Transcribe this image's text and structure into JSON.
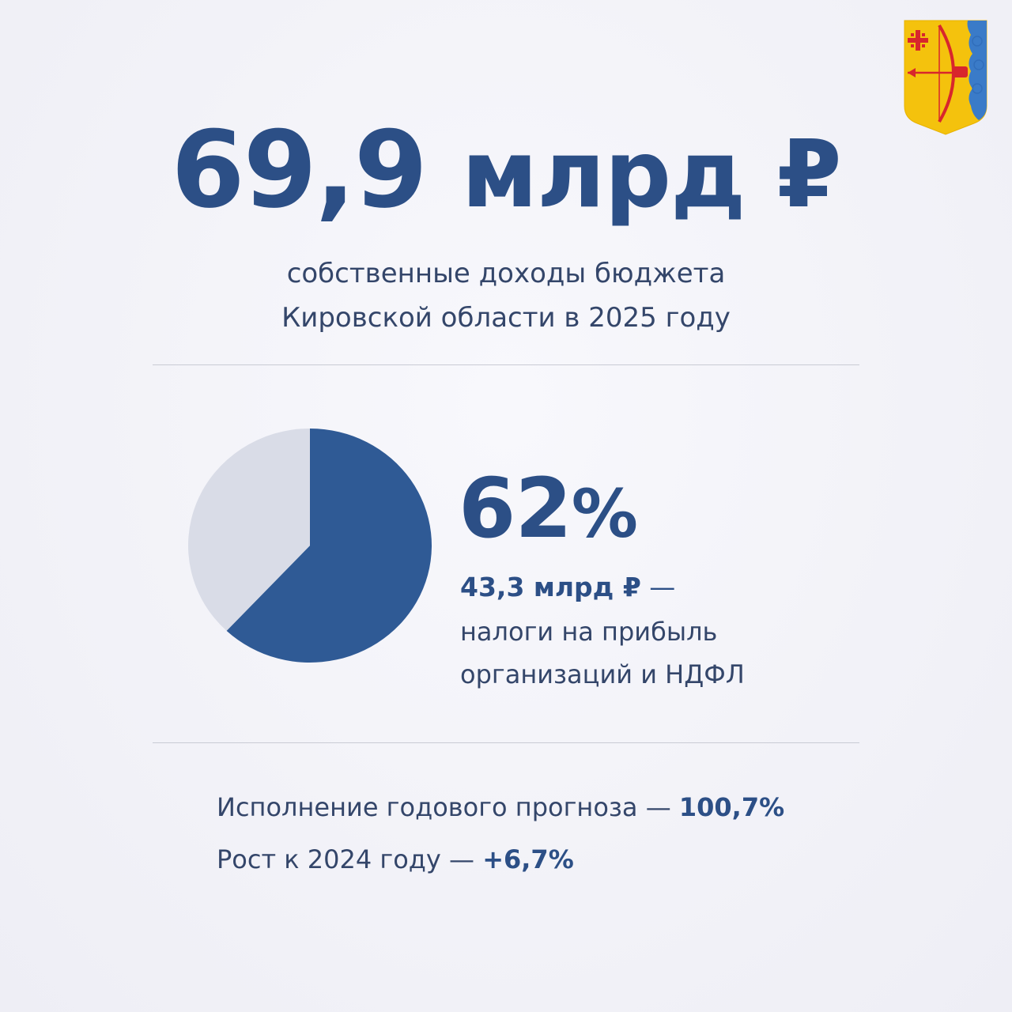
{
  "headline": {
    "value": "69,9",
    "unit": "млрд ₽"
  },
  "subtitle": {
    "line1": "собственные доходы бюджета",
    "line2": "Кировской области в 2025 году"
  },
  "chart_data": {
    "type": "pie",
    "slices": [
      {
        "label": "налоги на прибыль организаций и НДФЛ",
        "value": 62,
        "color": "#2f5a95"
      },
      {
        "label": "",
        "value": 38,
        "color": "#d9dce7"
      }
    ],
    "percent_label": "62",
    "percent_sign": "%",
    "amount": "43,3 млрд ₽",
    "amount_suffix": "—",
    "desc_line1": "налоги на прибыль",
    "desc_line2": "организаций и НДФЛ"
  },
  "facts": {
    "forecast_label": "Исполнение годового прогноза —",
    "forecast_value": "100,7%",
    "growth_label": "Рост к 2024 году —",
    "growth_value": "+6,7%"
  },
  "emblem": {
    "icon": "kirov-region-coat-of-arms-icon",
    "colors": {
      "field": "#f4c20d",
      "accent": "#d8262c",
      "cloud": "#3a7bc8"
    }
  }
}
